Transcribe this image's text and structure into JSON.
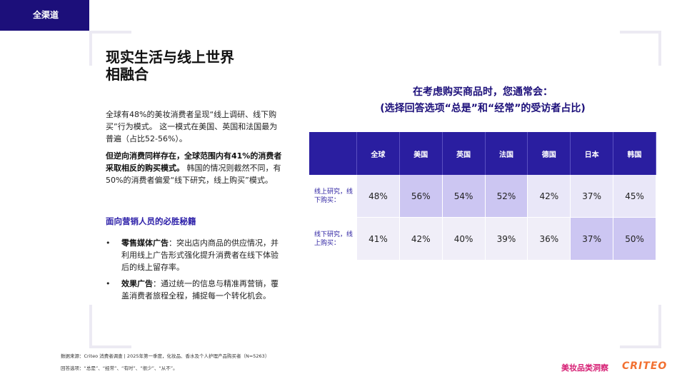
{
  "tag": "全渠道",
  "title_lines": [
    "现实生活与线上世界",
    "相融合"
  ],
  "paragraph1": "全球有48%的美妆消费者呈现“线上调研、线下购买”行为模式。 这一模式在美国、英国和法国最为普遍（占比52-56%）。",
  "paragraph2_bold": "但逆向消费同样存在，全球范围内有41%的消费者采取相反的购买模式。",
  "paragraph2_rest": " 韩国的情况则截然不同，有50%的消费者偏爱“线下研究，线上购买”模式。",
  "subhead": "面向营销人员的必胜秘籍",
  "bullets": [
    {
      "marker": "•",
      "bold": "零售媒体广告",
      "text": "：突出店内商品的供应情况，并利用线上广告形式强化提升消费者在线下体验后的线上留存率。"
    },
    {
      "marker": "•",
      "bold": "效果广告",
      "text": "：通过统一的信息与精准再营销，覆盖消费者旅程全程，捕捉每一个转化机会。"
    }
  ],
  "chart_title": [
    "在考虑购买商品时，您通常会：",
    "(选择回答选项“总是”和“经常”的受访者占比)"
  ],
  "table": {
    "columns": [
      "全球",
      "美国",
      "英国",
      "法国",
      "德国",
      "日本",
      "韩国"
    ],
    "rows": [
      {
        "label": "线上研究，线下购买：",
        "values": [
          "48%",
          "56%",
          "54%",
          "52%",
          "42%",
          "37%",
          "45%"
        ]
      },
      {
        "label": "线下研究，线上购买：",
        "values": [
          "41%",
          "42%",
          "40%",
          "39%",
          "36%",
          "37%",
          "50%"
        ]
      }
    ],
    "highlight_color": "#ccc6f2"
  },
  "footnote1": "数据来源：Criteo 消费者调查 | 2025年第一季度，化妆品、香水及个人护理产品购买者（N=5263）",
  "footnote2": "回答选项：“总是”、“经常”、“有时”、“很少”、“从不”。",
  "brand_category": "美妆品类洞察",
  "brand_logo": "CRITEO"
}
